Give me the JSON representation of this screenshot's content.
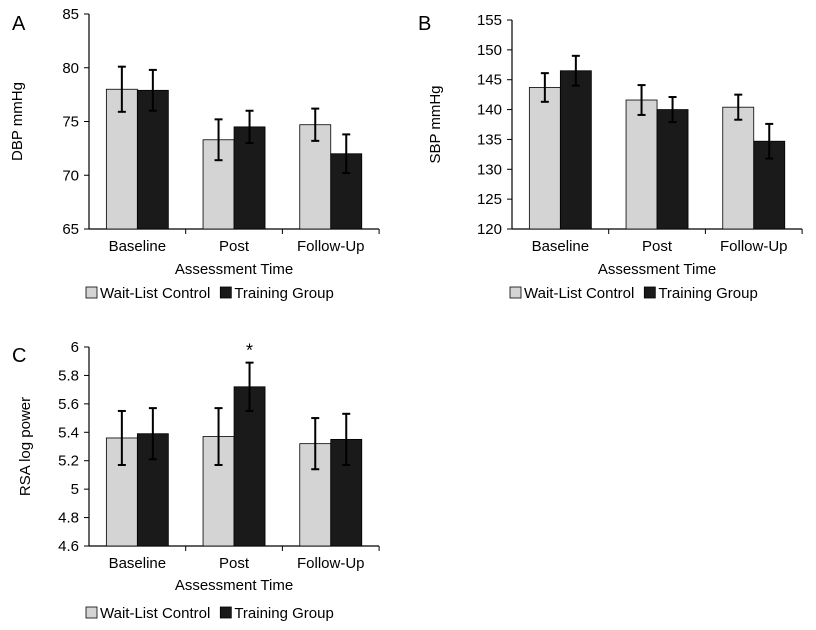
{
  "chart_data": [
    {
      "panel": "A",
      "type": "bar",
      "categories": [
        "Baseline",
        "Post",
        "Follow-Up"
      ],
      "xlabel": "Assessment Time",
      "ylabel": "DBP mmHg",
      "ylim": [
        65,
        85
      ],
      "yticks": [
        65,
        70,
        75,
        80,
        85
      ],
      "series": [
        {
          "name": "Wait-List Control",
          "color": "#d4d4d4",
          "values": [
            78.0,
            73.3,
            74.7
          ],
          "errors": [
            2.1,
            1.9,
            1.5
          ]
        },
        {
          "name": "Training Group",
          "color": "#1a1a1a",
          "values": [
            77.9,
            74.5,
            72.0
          ],
          "errors": [
            1.9,
            1.5,
            1.8
          ]
        }
      ],
      "annotations": []
    },
    {
      "panel": "B",
      "type": "bar",
      "categories": [
        "Baseline",
        "Post",
        "Follow-Up"
      ],
      "xlabel": "Assessment Time",
      "ylabel": "SBP mmHg",
      "ylim": [
        120,
        155
      ],
      "yticks": [
        120,
        125,
        130,
        135,
        140,
        145,
        150,
        155
      ],
      "series": [
        {
          "name": "Wait-List Control",
          "color": "#d4d4d4",
          "values": [
            143.7,
            141.6,
            140.4
          ],
          "errors": [
            2.4,
            2.5,
            2.1
          ]
        },
        {
          "name": "Training Group",
          "color": "#1a1a1a",
          "values": [
            146.5,
            140.0,
            134.7
          ],
          "errors": [
            2.5,
            2.1,
            2.9
          ]
        }
      ],
      "annotations": []
    },
    {
      "panel": "C",
      "type": "bar",
      "categories": [
        "Baseline",
        "Post",
        "Follow-Up"
      ],
      "xlabel": "Assessment Time",
      "ylabel": "RSA log power",
      "ylim": [
        4.6,
        6.0
      ],
      "yticks": [
        "4.6",
        "4.8",
        "5",
        "5.2",
        "5.4",
        "5.6",
        "5.8",
        "6"
      ],
      "series": [
        {
          "name": "Wait-List Control",
          "color": "#d4d4d4",
          "values": [
            5.36,
            5.37,
            5.32
          ],
          "errors": [
            0.19,
            0.2,
            0.18
          ]
        },
        {
          "name": "Training Group",
          "color": "#1a1a1a",
          "values": [
            5.39,
            5.72,
            5.35
          ],
          "errors": [
            0.18,
            0.17,
            0.18
          ]
        }
      ],
      "annotations": [
        {
          "text": "*",
          "category": "Post",
          "series": "Training Group"
        }
      ]
    }
  ]
}
